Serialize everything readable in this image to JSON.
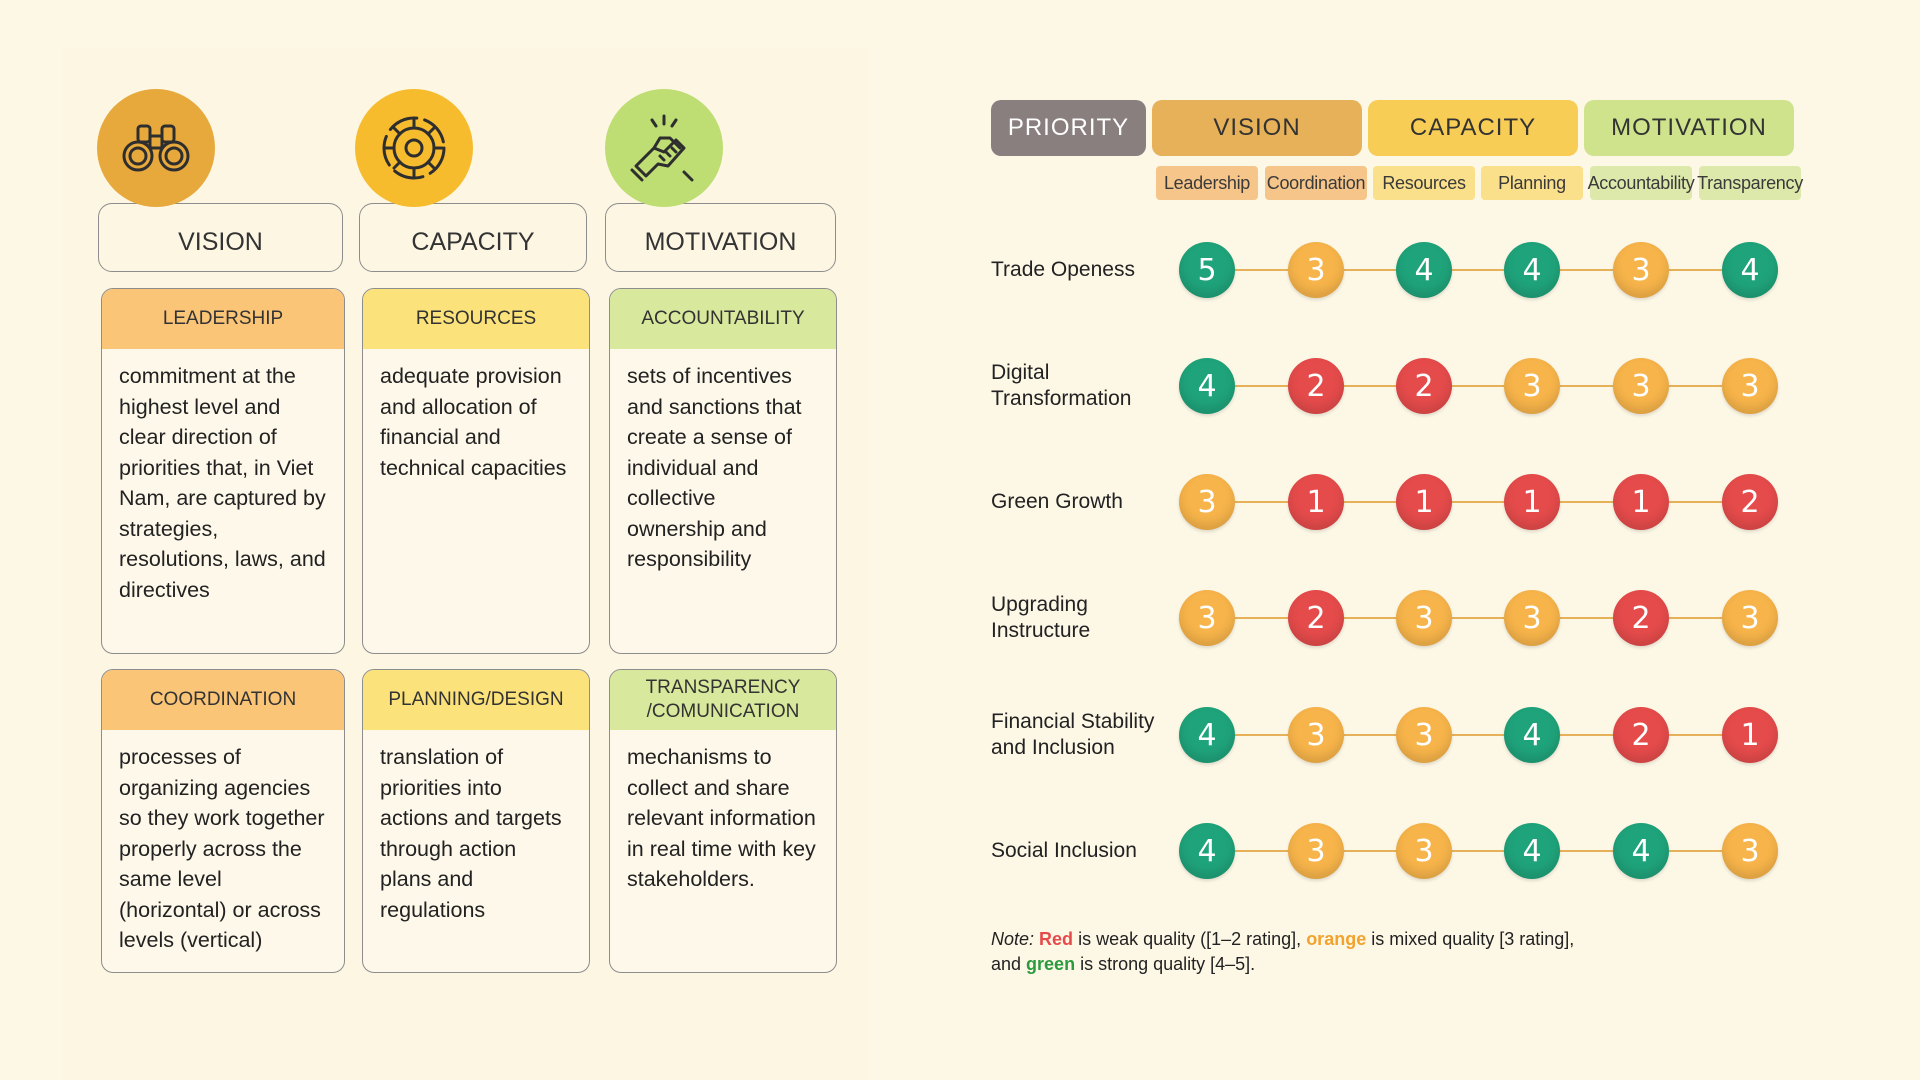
{
  "pillars": [
    {
      "label": "VISION",
      "color": "#e8a93c",
      "icon": "binoculars-icon"
    },
    {
      "label": "CAPACITY",
      "color": "#f7bc2e",
      "icon": "gear-target-icon"
    },
    {
      "label": "MOTIVATION",
      "color": "#bedd73",
      "icon": "handshake-icon"
    }
  ],
  "cards": [
    {
      "title": "LEADERSHIP",
      "head_color": "#fbc578",
      "text": "commitment at the highest level and clear direction of priorities that, in Viet Nam, are captured by strategies, resolutions, laws, and directives"
    },
    {
      "title": "RESOURCES",
      "head_color": "#fbe27a",
      "text": "adequate provision and allocation of financial and technical capacities"
    },
    {
      "title": "ACCOUNTABILITY",
      "head_color": "#d8e89c",
      "text": "sets of incentives and sanctions that create a sense of individual and collective ownership and responsibility"
    },
    {
      "title": "COORDINATION",
      "head_color": "#fbc578",
      "text": "processes of organizing agencies so they work together properly across the same level (horizontal) or across levels (vertical)"
    },
    {
      "title": "PLANNING/DESIGN",
      "head_color": "#fbe27a",
      "text": "translation of priorities into actions and targets through action plans and regulations"
    },
    {
      "title": "TRANSPARENCY /COMUNICATION",
      "head_color": "#d8e89c",
      "text": "mechanisms to collect and share relevant information in real time with key stakeholders."
    }
  ],
  "matrix": {
    "headers": [
      {
        "label": "PRIORITY",
        "color": "#8a7f7f",
        "text_color": "#ffffff"
      },
      {
        "label": "VISION",
        "color": "#e6b158",
        "text_color": "#333333"
      },
      {
        "label": "CAPACITY",
        "color": "#f8cd56",
        "text_color": "#333333"
      },
      {
        "label": "MOTIVATION",
        "color": "#cfe38d",
        "text_color": "#333333"
      }
    ],
    "subheaders": [
      {
        "label": "Leadership",
        "color": "#f6c58a"
      },
      {
        "label": "Coordination",
        "color": "#f6c58a"
      },
      {
        "label": "Resources",
        "color": "#fbe08c"
      },
      {
        "label": "Planning",
        "color": "#fbe08c"
      },
      {
        "label": "Accountability",
        "color": "#dde9ab"
      },
      {
        "label": "Transparency",
        "color": "#dde9ab"
      }
    ],
    "rows": [
      {
        "label": "Trade Openess",
        "ratings": [
          5,
          3,
          4,
          4,
          3,
          4
        ]
      },
      {
        "label": "Digital Transformation",
        "ratings": [
          4,
          2,
          2,
          3,
          3,
          3
        ]
      },
      {
        "label": "Green Growth",
        "ratings": [
          3,
          1,
          1,
          1,
          1,
          2
        ]
      },
      {
        "label": "Upgrading Instructure",
        "ratings": [
          3,
          2,
          3,
          3,
          2,
          3
        ]
      },
      {
        "label": "Financial Stability and Inclusion",
        "ratings": [
          4,
          3,
          3,
          4,
          2,
          1
        ]
      },
      {
        "label": "Social Inclusion",
        "ratings": [
          4,
          3,
          3,
          4,
          4,
          3
        ]
      }
    ],
    "colors": {
      "red": "#e54b4b",
      "orange": "#f7b44a",
      "green": "#1fa37a"
    }
  },
  "note": {
    "prefix": "Note:",
    "red_word": "Red",
    "part1": " is weak quality ([1–2 rating], ",
    "orange_word": "orange",
    "part2": " is mixed quality [3 rating],",
    "part3": "and ",
    "green_word": "green",
    "part4": " is strong quality [4–5]."
  }
}
